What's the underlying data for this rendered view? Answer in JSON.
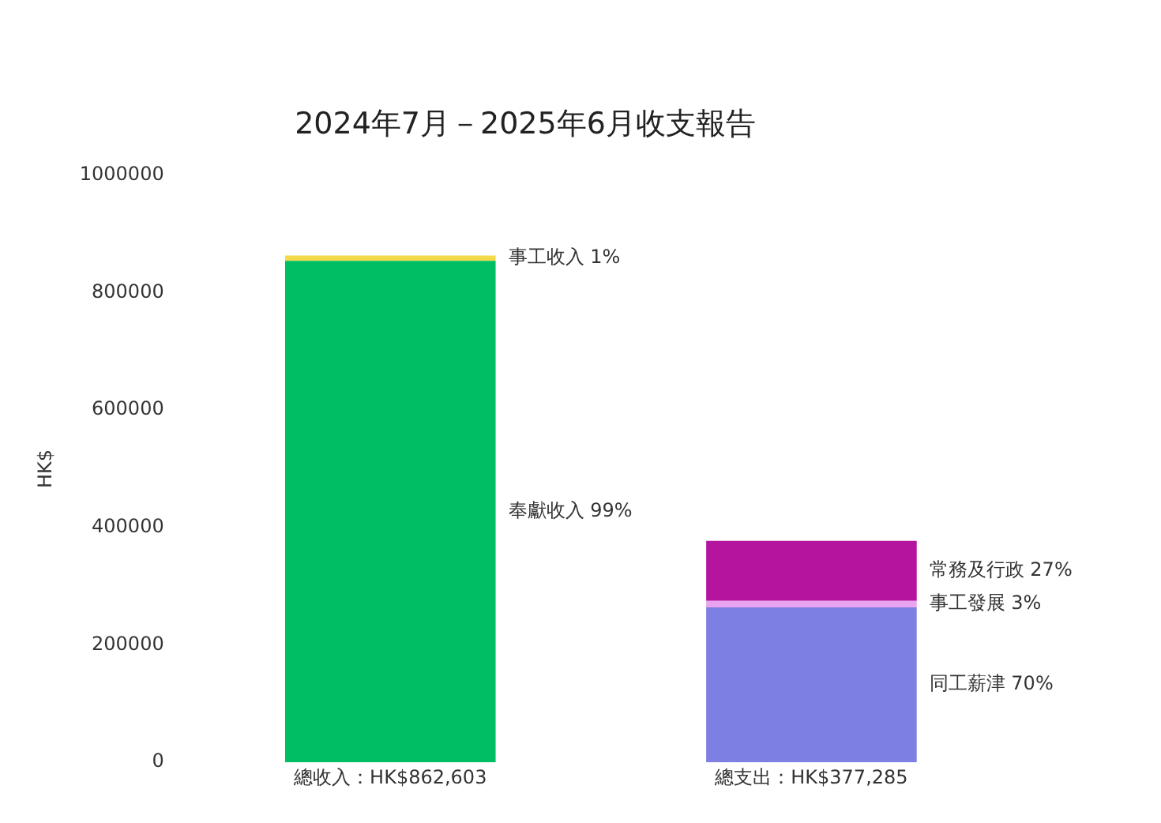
{
  "chart_data": {
    "type": "bar",
    "title": "2024年7月－2025年6月收支報告",
    "ylabel": "HK$",
    "categories": [
      "總收入：HK$862,603",
      "總支出：HK$377,285"
    ],
    "stacked": true,
    "ylim": [
      0,
      1000000
    ],
    "yticks": [
      0,
      200000,
      400000,
      600000,
      800000,
      1000000
    ],
    "grid": false,
    "legend": false,
    "series": [
      {
        "name": "奉獻收入 99%",
        "color": "#00bf63",
        "values": [
          854000,
          null
        ]
      },
      {
        "name": "事工收入 1%",
        "color": "#f5d94a",
        "values": [
          9000,
          null
        ]
      },
      {
        "name": "同工薪津 70%",
        "color": "#7d7fe3",
        "values": [
          null,
          264000
        ]
      },
      {
        "name": "事工發展 3%",
        "color": "#eaa4ef",
        "values": [
          null,
          11000
        ]
      },
      {
        "name": "常務及行政 27%",
        "color": "#b5149e",
        "values": [
          null,
          102000
        ]
      }
    ]
  }
}
